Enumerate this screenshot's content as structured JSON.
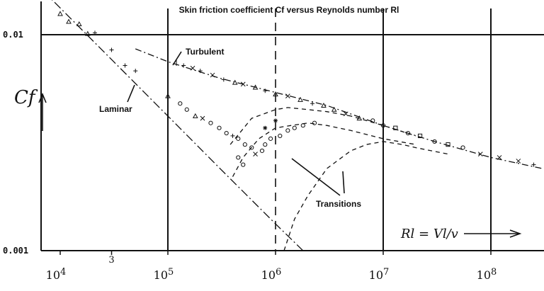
{
  "chart_data": {
    "type": "line",
    "title": "Skin friction coefficient Cf versus Reynolds number Rl",
    "ylabel": "Cf",
    "xlabel": "Rl = Vl/v",
    "x_scale": "log",
    "y_scale": "log",
    "xlim": [
      7000,
      500000000
    ],
    "ylim": [
      0.001,
      0.013
    ],
    "x_ticks": [
      "10^4",
      "3",
      "10^5",
      "10^6",
      "10^7",
      "10^8"
    ],
    "y_ticks": [
      "0.01",
      "0.001"
    ],
    "grid_x": [
      100000,
      1000000,
      10000000,
      100000000
    ],
    "series": [
      {
        "name": "Laminar",
        "style": "dash-dot",
        "x": [
          7000,
          30000,
          100000,
          300000,
          1000000,
          1800000
        ],
        "y": [
          0.0159,
          0.00767,
          0.0042,
          0.00242,
          0.00133,
          0.001
        ]
      },
      {
        "name": "Turbulent",
        "style": "dash-dot",
        "x": [
          50000,
          100000,
          300000,
          1000000,
          3000000,
          10000000,
          30000000,
          100000000,
          300000000,
          500000000
        ],
        "y": [
          0.0086,
          0.0075,
          0.0063,
          0.0054,
          0.0047,
          0.0038,
          0.0032,
          0.0027,
          0.0024,
          0.0023
        ]
      },
      {
        "name": "Transitions",
        "style": "dashed",
        "x": [
          380000,
          600000,
          1000000,
          1300000,
          2000000,
          3000000,
          5000000,
          10000000,
          20000000
        ],
        "y": [
          0.0031,
          0.0041,
          0.0045,
          0.0046,
          0.0045,
          0.0044,
          0.0042,
          0.0038,
          0.0034
        ]
      },
      {
        "name": "Transitions",
        "style": "dashed",
        "x": [
          400000,
          500000,
          700000,
          1000000,
          1400000,
          2000000,
          3000000,
          5000000,
          10000000,
          20000000
        ],
        "y": [
          0.0022,
          0.0027,
          0.0033,
          0.0037,
          0.0038,
          0.0039,
          0.0038,
          0.0036,
          0.0033,
          0.0031
        ]
      },
      {
        "name": "Transitions",
        "style": "dashed",
        "x": [
          1200000,
          1500000,
          2000000,
          3000000,
          5000000,
          7000000,
          10000000,
          15000000,
          20000000,
          40000000
        ],
        "y": [
          0.001,
          0.0014,
          0.0018,
          0.0024,
          0.0029,
          0.0031,
          0.0032,
          0.0031,
          0.003,
          0.0028
        ]
      }
    ],
    "markers": [
      {
        "x": 10000,
        "y": 0.0125,
        "m": "^"
      },
      {
        "x": 12000,
        "y": 0.0115,
        "m": "^"
      },
      {
        "x": 15000,
        "y": 0.0112,
        "m": "^"
      },
      {
        "x": 18000,
        "y": 0.0101,
        "m": "^"
      },
      {
        "x": 21000,
        "y": 0.0102,
        "m": "+"
      },
      {
        "x": 30000,
        "y": 0.0085,
        "m": "+"
      },
      {
        "x": 40000,
        "y": 0.0072,
        "m": "+"
      },
      {
        "x": 50000,
        "y": 0.0068,
        "m": "+"
      },
      {
        "x": 100000,
        "y": 0.0052,
        "m": "^"
      },
      {
        "x": 130000,
        "y": 0.0048,
        "m": "o"
      },
      {
        "x": 150000,
        "y": 0.0045,
        "m": "o"
      },
      {
        "x": 180000,
        "y": 0.0042,
        "m": "^"
      },
      {
        "x": 210000,
        "y": 0.0041,
        "m": "x"
      },
      {
        "x": 250000,
        "y": 0.0039,
        "m": "o"
      },
      {
        "x": 300000,
        "y": 0.0037,
        "m": "o"
      },
      {
        "x": 350000,
        "y": 0.0035,
        "m": "o"
      },
      {
        "x": 400000,
        "y": 0.0034,
        "m": "+"
      },
      {
        "x": 450000,
        "y": 0.0033,
        "m": "o"
      },
      {
        "x": 520000,
        "y": 0.0031,
        "m": "o"
      },
      {
        "x": 600000,
        "y": 0.003,
        "m": "o"
      },
      {
        "x": 450000,
        "y": 0.0027,
        "m": "o"
      },
      {
        "x": 500000,
        "y": 0.0025,
        "m": "o"
      },
      {
        "x": 650000,
        "y": 0.0028,
        "m": "x"
      },
      {
        "x": 750000,
        "y": 0.0029,
        "m": "o"
      },
      {
        "x": 800000,
        "y": 0.0031,
        "m": "o"
      },
      {
        "x": 900000,
        "y": 0.0033,
        "m": "o"
      },
      {
        "x": 1100000,
        "y": 0.0034,
        "m": "o"
      },
      {
        "x": 1300000,
        "y": 0.0036,
        "m": "o"
      },
      {
        "x": 1500000,
        "y": 0.0037,
        "m": "o"
      },
      {
        "x": 1800000,
        "y": 0.0038,
        "m": "o"
      },
      {
        "x": 2300000,
        "y": 0.0039,
        "m": "o"
      },
      {
        "x": 800000,
        "y": 0.0037,
        "m": "*"
      },
      {
        "x": 1000000,
        "y": 0.004,
        "m": "*"
      },
      {
        "x": 120000,
        "y": 0.0074,
        "m": "|"
      },
      {
        "x": 140000,
        "y": 0.0072,
        "m": "+"
      },
      {
        "x": 170000,
        "y": 0.007,
        "m": "x"
      },
      {
        "x": 200000,
        "y": 0.0068,
        "m": "+"
      },
      {
        "x": 260000,
        "y": 0.0065,
        "m": "x"
      },
      {
        "x": 330000,
        "y": 0.0062,
        "m": "+"
      },
      {
        "x": 420000,
        "y": 0.006,
        "m": "^"
      },
      {
        "x": 500000,
        "y": 0.0059,
        "m": "x"
      },
      {
        "x": 650000,
        "y": 0.0057,
        "m": "^"
      },
      {
        "x": 800000,
        "y": 0.0055,
        "m": "+"
      },
      {
        "x": 1000000,
        "y": 0.0053,
        "m": "^"
      },
      {
        "x": 1300000,
        "y": 0.0052,
        "m": "x"
      },
      {
        "x": 1700000,
        "y": 0.005,
        "m": "^"
      },
      {
        "x": 2200000,
        "y": 0.0048,
        "m": "+"
      },
      {
        "x": 2800000,
        "y": 0.0047,
        "m": "^"
      },
      {
        "x": 3500000,
        "y": 0.0045,
        "m": "^"
      },
      {
        "x": 4500000,
        "y": 0.0043,
        "m": "x"
      },
      {
        "x": 6000000,
        "y": 0.0041,
        "m": "^"
      },
      {
        "x": 8000000,
        "y": 0.004,
        "m": "o"
      },
      {
        "x": 10000000,
        "y": 0.0038,
        "m": "o"
      },
      {
        "x": 13000000,
        "y": 0.0037,
        "m": "s"
      },
      {
        "x": 17000000,
        "y": 0.0035,
        "m": "o"
      },
      {
        "x": 22000000,
        "y": 0.0034,
        "m": "s"
      },
      {
        "x": 30000000,
        "y": 0.0032,
        "m": "o"
      },
      {
        "x": 40000000,
        "y": 0.0031,
        "m": "s"
      },
      {
        "x": 55000000,
        "y": 0.003,
        "m": "o"
      },
      {
        "x": 80000000,
        "y": 0.0028,
        "m": "x"
      },
      {
        "x": 120000000,
        "y": 0.0027,
        "m": "x"
      },
      {
        "x": 180000000,
        "y": 0.0026,
        "m": "x"
      },
      {
        "x": 250000000,
        "y": 0.0025,
        "m": "+"
      },
      {
        "x": 350000000,
        "y": 0.0024,
        "m": "x"
      }
    ],
    "annotations": [
      "Turbulent",
      "Laminar",
      "Transitions"
    ]
  }
}
